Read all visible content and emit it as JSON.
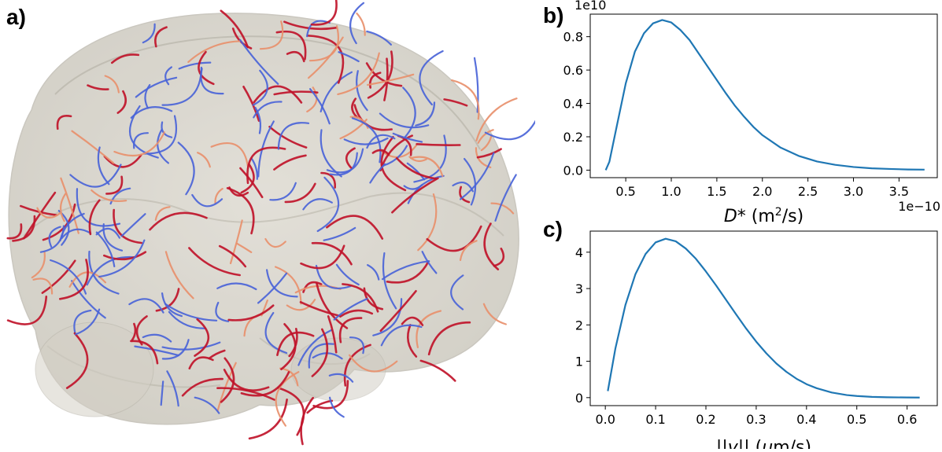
{
  "panels": {
    "a": "a)",
    "b": "b)",
    "c": "c)"
  },
  "brain": {
    "colors": {
      "artery": "#c0142a",
      "vein": "#4a64d8",
      "mixed": "#e8906c",
      "tissue": "#c8c4b8"
    }
  },
  "chart_data": [
    {
      "type": "line",
      "panel": "b",
      "xlabel": "D* (m²/s)",
      "xlabel_main": "D*",
      "xlabel_unit_pre": "(m",
      "xlabel_unit_sup": "2",
      "xlabel_unit_post": "/s)",
      "x_offset_text": "1e−10",
      "y_offset_text": "1e10",
      "xlim": [
        0.11,
        3.92
      ],
      "ylim": [
        -0.045,
        0.935
      ],
      "xticks": [
        0.5,
        1.0,
        1.5,
        2.0,
        2.5,
        3.0,
        3.5
      ],
      "xtick_labels": [
        "0.5",
        "1.0",
        "1.5",
        "2.0",
        "2.5",
        "3.0",
        "3.5"
      ],
      "yticks": [
        0.0,
        0.2,
        0.4,
        0.6,
        0.8
      ],
      "ytick_labels": [
        "0.0",
        "0.2",
        "0.4",
        "0.6",
        "0.8"
      ],
      "grid": false,
      "series": [
        {
          "color": "#1f77b4",
          "x": [
            0.28,
            0.32,
            0.4,
            0.5,
            0.6,
            0.7,
            0.8,
            0.9,
            1.0,
            1.1,
            1.2,
            1.3,
            1.4,
            1.5,
            1.6,
            1.7,
            1.8,
            1.9,
            2.0,
            2.2,
            2.4,
            2.6,
            2.8,
            3.0,
            3.2,
            3.4,
            3.6,
            3.78
          ],
          "y": [
            0.0,
            0.05,
            0.26,
            0.52,
            0.71,
            0.82,
            0.88,
            0.9,
            0.885,
            0.84,
            0.78,
            0.7,
            0.62,
            0.54,
            0.46,
            0.385,
            0.32,
            0.26,
            0.21,
            0.135,
            0.085,
            0.052,
            0.032,
            0.019,
            0.011,
            0.007,
            0.004,
            0.003
          ]
        }
      ]
    },
    {
      "type": "line",
      "panel": "c",
      "xlabel": "||v|| (μm/s)",
      "xlabel_pre": "||",
      "xlabel_var": "v",
      "xlabel_mid": "|| (",
      "xlabel_mu": "μ",
      "xlabel_post": "m/s)",
      "xlim": [
        -0.03,
        0.66
      ],
      "ylim": [
        -0.22,
        4.58
      ],
      "xticks": [
        0.0,
        0.1,
        0.2,
        0.3,
        0.4,
        0.5,
        0.6
      ],
      "xtick_labels": [
        "0.0",
        "0.1",
        "0.2",
        "0.3",
        "0.4",
        "0.5",
        "0.6"
      ],
      "yticks": [
        0,
        1,
        2,
        3,
        4
      ],
      "ytick_labels": [
        "0",
        "1",
        "2",
        "3",
        "4"
      ],
      "grid": false,
      "series": [
        {
          "color": "#1f77b4",
          "x": [
            0.005,
            0.02,
            0.04,
            0.06,
            0.08,
            0.1,
            0.12,
            0.14,
            0.16,
            0.18,
            0.2,
            0.22,
            0.24,
            0.26,
            0.28,
            0.3,
            0.32,
            0.34,
            0.36,
            0.38,
            0.4,
            0.42,
            0.45,
            0.48,
            0.5,
            0.53,
            0.56,
            0.6,
            0.625
          ],
          "y": [
            0.18,
            1.35,
            2.55,
            3.4,
            3.95,
            4.27,
            4.37,
            4.3,
            4.1,
            3.82,
            3.47,
            3.09,
            2.69,
            2.29,
            1.9,
            1.54,
            1.22,
            0.94,
            0.71,
            0.52,
            0.37,
            0.26,
            0.14,
            0.07,
            0.045,
            0.02,
            0.01,
            0.004,
            0.002
          ]
        }
      ]
    }
  ]
}
